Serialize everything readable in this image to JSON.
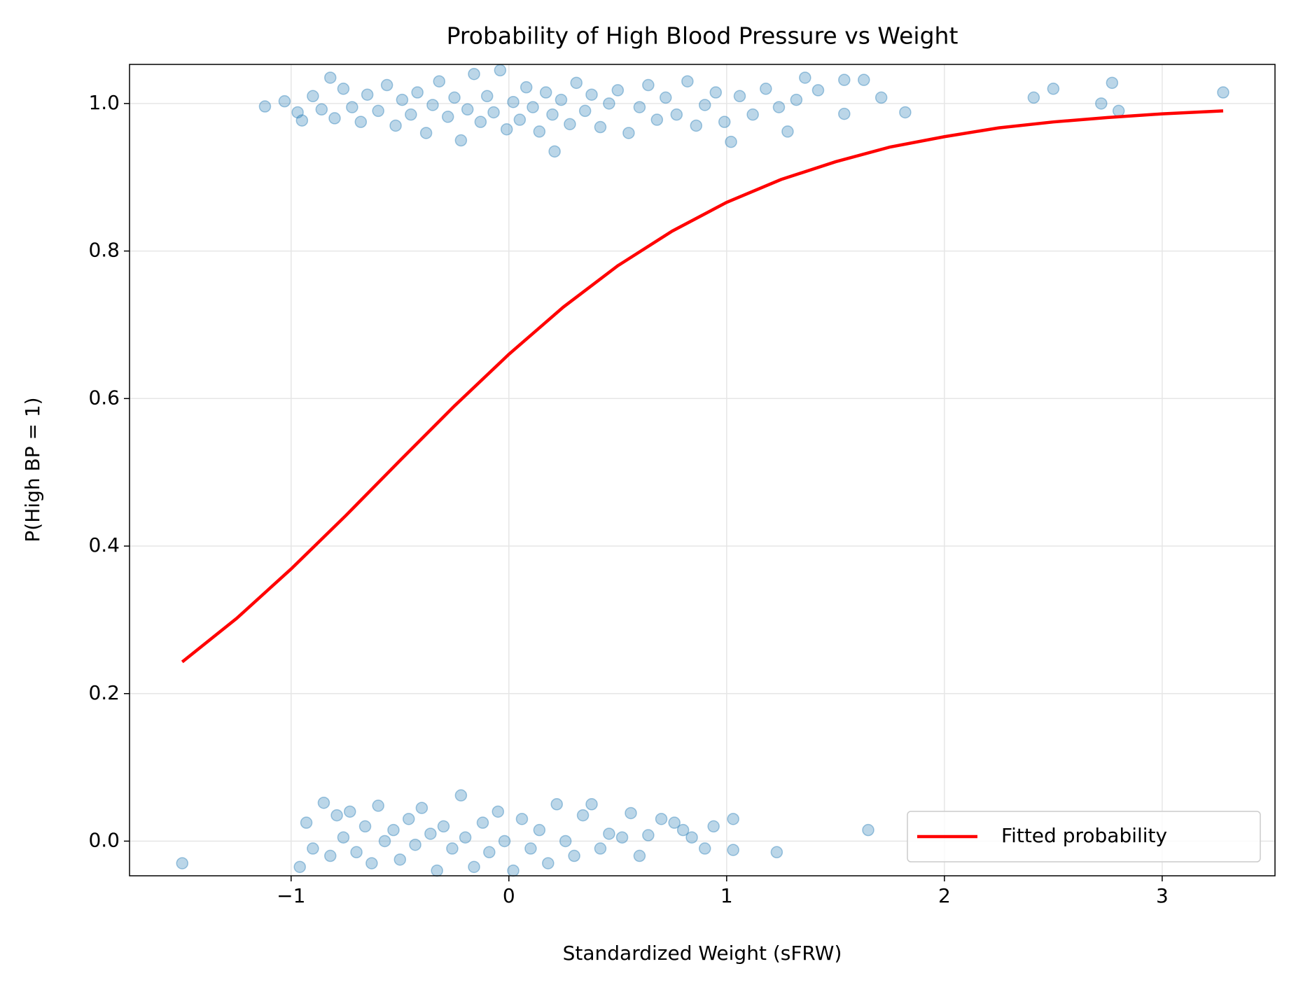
{
  "chart_data": {
    "type": "scatter",
    "title": "Probability of High Blood Pressure vs Weight",
    "xlabel": "Standardized Weight (sFRW)",
    "ylabel": "P(High BP = 1)",
    "xlim": [
      -1.742,
      3.518
    ],
    "ylim": [
      -0.047,
      1.053
    ],
    "xticks": [
      {
        "value": -1,
        "label": "−1"
      },
      0,
      1,
      2,
      3
    ],
    "yticks": [
      {
        "value": 0,
        "label": "0.0"
      },
      0.2,
      0.4,
      0.6,
      0.8,
      {
        "value": 1,
        "label": "1.0"
      }
    ],
    "grid": true,
    "legend": "lower right",
    "points": {
      "color": "#1f77b4",
      "x": [
        -1.12,
        -1.03,
        -0.97,
        -0.95,
        -0.9,
        -0.86,
        -0.82,
        -0.8,
        -0.76,
        -0.72,
        -0.68,
        -0.65,
        -0.6,
        -0.56,
        -0.52,
        -0.49,
        -0.45,
        -0.42,
        -0.38,
        -0.35,
        -0.32,
        -0.28,
        -0.25,
        -0.22,
        -0.19,
        -0.16,
        -0.13,
        -0.1,
        -0.07,
        -0.04,
        -0.01,
        0.02,
        0.05,
        0.08,
        0.11,
        0.14,
        0.17,
        0.2,
        0.21,
        0.24,
        0.28,
        0.31,
        0.35,
        0.38,
        0.42,
        0.46,
        0.5,
        0.55,
        0.6,
        0.64,
        0.68,
        0.72,
        0.77,
        0.82,
        0.86,
        0.9,
        0.95,
        0.99,
        1.02,
        1.06,
        1.12,
        1.18,
        1.24,
        1.28,
        1.32,
        1.36,
        1.42,
        1.54,
        1.54,
        1.63,
        1.71,
        1.82,
        2.41,
        2.5,
        2.72,
        2.77,
        2.8,
        3.28,
        -1.5,
        -0.96,
        -0.93,
        -0.9,
        -0.85,
        -0.82,
        -0.79,
        -0.76,
        -0.73,
        -0.7,
        -0.66,
        -0.63,
        -0.6,
        -0.57,
        -0.53,
        -0.5,
        -0.46,
        -0.43,
        -0.4,
        -0.36,
        -0.33,
        -0.3,
        -0.26,
        -0.22,
        -0.2,
        -0.16,
        -0.12,
        -0.09,
        -0.05,
        -0.02,
        0.02,
        0.06,
        0.1,
        0.14,
        0.18,
        0.22,
        0.26,
        0.3,
        0.34,
        0.38,
        0.42,
        0.46,
        0.52,
        0.56,
        0.6,
        0.64,
        0.7,
        0.76,
        0.8,
        0.84,
        0.9,
        0.94,
        1.03,
        1.03,
        1.23,
        1.65
      ],
      "values": [
        0.996,
        1.003,
        0.988,
        0.977,
        1.01,
        0.992,
        1.035,
        0.98,
        1.02,
        0.995,
        0.975,
        1.012,
        0.99,
        1.025,
        0.97,
        1.005,
        0.985,
        1.015,
        0.96,
        0.998,
        1.03,
        0.982,
        1.008,
        0.95,
        0.992,
        1.04,
        0.975,
        1.01,
        0.988,
        1.045,
        0.965,
        1.002,
        0.978,
        1.022,
        0.995,
        0.962,
        1.015,
        0.985,
        0.935,
        1.005,
        0.972,
        1.028,
        0.99,
        1.012,
        0.968,
        1.0,
        1.018,
        0.96,
        0.995,
        1.025,
        0.978,
        1.008,
        0.985,
        1.03,
        0.97,
        0.998,
        1.015,
        0.975,
        0.948,
        1.01,
        0.985,
        1.02,
        0.995,
        0.962,
        1.005,
        1.035,
        1.018,
        1.032,
        0.986,
        1.032,
        1.008,
        0.988,
        1.008,
        1.02,
        1.0,
        1.028,
        0.99,
        1.015,
        -0.03,
        -0.035,
        0.025,
        -0.01,
        0.052,
        -0.02,
        0.035,
        0.005,
        0.04,
        -0.015,
        0.02,
        -0.03,
        0.048,
        0.0,
        0.015,
        -0.025,
        0.03,
        -0.005,
        0.045,
        0.01,
        -0.04,
        0.02,
        -0.01,
        0.062,
        0.005,
        -0.035,
        0.025,
        -0.015,
        0.04,
        0.0,
        -0.04,
        0.03,
        -0.01,
        0.015,
        -0.03,
        0.05,
        0.0,
        -0.02,
        0.035,
        0.05,
        -0.01,
        0.01,
        0.005,
        0.038,
        -0.02,
        0.008,
        0.03,
        0.025,
        0.015,
        0.005,
        -0.01,
        0.02,
        0.03,
        -0.012,
        -0.015,
        0.015
      ]
    },
    "series": [
      {
        "name": "Fitted probability",
        "color": "#ff0000",
        "x": [
          -1.5,
          -1.25,
          -1,
          -0.75,
          -0.5,
          -0.25,
          0,
          0.25,
          0.5,
          0.75,
          1,
          1.25,
          1.5,
          1.75,
          2,
          2.25,
          2.5,
          2.75,
          3,
          3.28
        ],
        "values": [
          0.243,
          0.302,
          0.369,
          0.441,
          0.516,
          0.59,
          0.66,
          0.724,
          0.78,
          0.827,
          0.866,
          0.897,
          0.921,
          0.941,
          0.955,
          0.967,
          0.975,
          0.981,
          0.986,
          0.99
        ]
      }
    ]
  }
}
